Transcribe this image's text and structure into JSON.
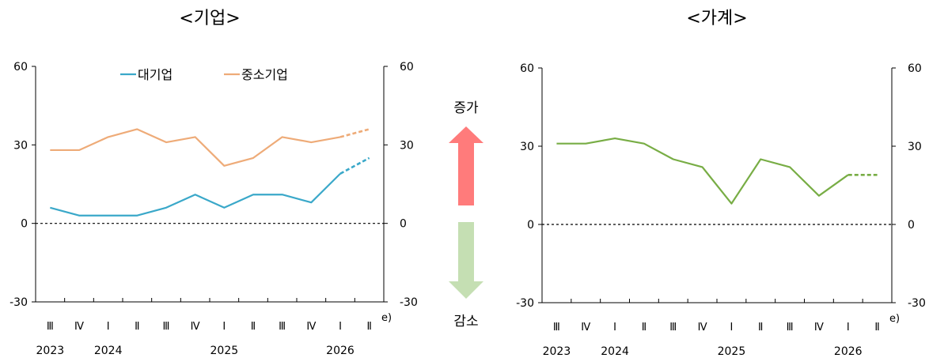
{
  "chart_data": [
    {
      "type": "line",
      "title": "<기업>",
      "categories": [
        "Ⅲ",
        "Ⅳ",
        "Ⅰ",
        "Ⅱ",
        "Ⅲ",
        "Ⅳ",
        "Ⅰ",
        "Ⅱ",
        "Ⅲ",
        "Ⅳ",
        "Ⅰ",
        "Ⅱ"
      ],
      "years": [
        {
          "label": "2023",
          "at": 0
        },
        {
          "label": "2024",
          "at": 2
        },
        {
          "label": "2025",
          "at": 6
        },
        {
          "label": "2026",
          "at": 10
        }
      ],
      "forecast_mark": "e)",
      "forecast_from": 10,
      "ylim": [
        -30,
        60
      ],
      "yticks": [
        "60",
        "30",
        "0",
        "-30"
      ],
      "legend_position": "top",
      "series": [
        {
          "name": "대기업",
          "color": "#3aa8c9",
          "values": [
            6,
            3,
            3,
            3,
            6,
            11,
            6,
            11,
            11,
            8,
            19,
            25
          ]
        },
        {
          "name": "중소기업",
          "color": "#eeab78",
          "values": [
            28,
            28,
            33,
            36,
            31,
            33,
            22,
            25,
            33,
            31,
            33,
            36
          ]
        }
      ]
    },
    {
      "type": "line",
      "title": "<가계>",
      "categories": [
        "Ⅲ",
        "Ⅳ",
        "Ⅰ",
        "Ⅱ",
        "Ⅲ",
        "Ⅳ",
        "Ⅰ",
        "Ⅱ",
        "Ⅲ",
        "Ⅳ",
        "Ⅰ",
        "Ⅱ"
      ],
      "years": [
        {
          "label": "2023",
          "at": 0
        },
        {
          "label": "2024",
          "at": 2
        },
        {
          "label": "2025",
          "at": 6
        },
        {
          "label": "2026",
          "at": 10
        }
      ],
      "forecast_mark": "e)",
      "forecast_from": 10,
      "ylim": [
        -30,
        60
      ],
      "yticks": [
        "60",
        "30",
        "0",
        "-30"
      ],
      "series": [
        {
          "color": "#78ad45",
          "values": [
            31,
            31,
            33,
            31,
            25,
            22,
            8,
            25,
            22,
            11,
            19,
            19
          ]
        }
      ]
    }
  ],
  "indicator": {
    "up_label": "증가",
    "down_label": "감소",
    "up_color": "#ff7b7b",
    "down_color": "#c5dfb3"
  }
}
